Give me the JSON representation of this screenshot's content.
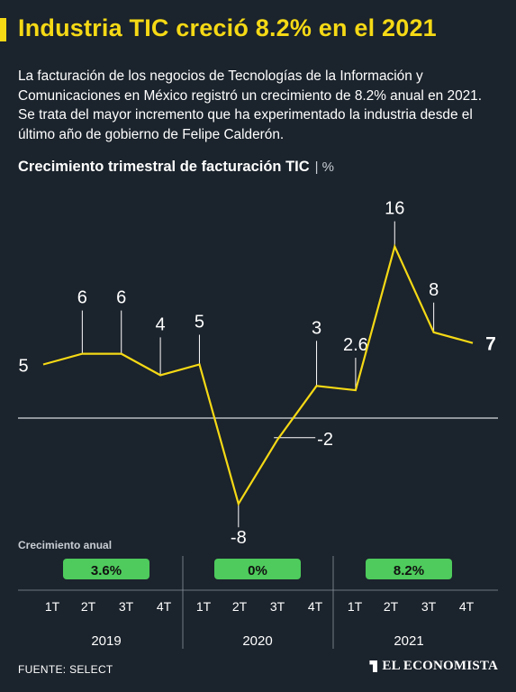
{
  "header": {
    "title": "Industria TIC creció 8.2% en el 2021",
    "lede": "La facturación de los negocios de Tecnologías de la Información y Comunicaciones en México registró un crecimiento de 8.2% anual en 2021. Se trata del mayor incremento que ha experimentado la industria desde el último año de gobierno de Felipe Calderón."
  },
  "chart_heading": {
    "title": "Crecimiento trimestral de facturación TIC",
    "separator": "|",
    "unit": "%"
  },
  "annual": {
    "label": "Crecimiento anual",
    "values": [
      "3.6%",
      "0%",
      "8.2%"
    ]
  },
  "colors": {
    "accent": "#f5d915",
    "badge": "#4ecb5c",
    "background": "#1b232c",
    "baseline": "#d7dbe0"
  },
  "chart_data": {
    "type": "line",
    "categories": [
      "1T",
      "2T",
      "3T",
      "4T",
      "1T",
      "2T",
      "3T",
      "4T",
      "1T",
      "2T",
      "3T",
      "4T"
    ],
    "years": [
      "2019",
      "2020",
      "2021"
    ],
    "series": [
      {
        "values": [
          5,
          6,
          6,
          4,
          5,
          -8,
          -2,
          3,
          2.6,
          16,
          8,
          7
        ]
      }
    ],
    "data_labels": [
      "5",
      "6",
      "6",
      "4",
      "5",
      "-8",
      "-2",
      "3",
      "2.6",
      "16",
      "8",
      "7"
    ],
    "ylim": [
      -9,
      17
    ],
    "zero_line": true,
    "grid": false
  },
  "footer": {
    "source": "FUENTE: SELECT",
    "brand": "EL ECONOMISTA"
  }
}
